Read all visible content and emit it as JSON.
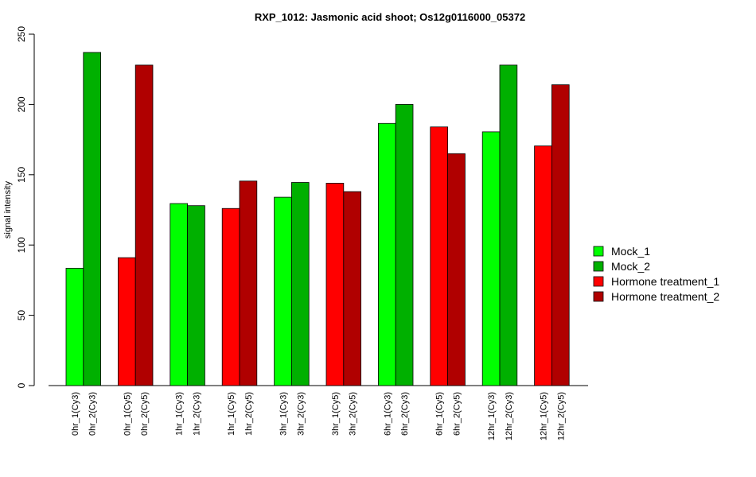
{
  "chart_data": {
    "type": "bar",
    "title": "RXP_1012: Jasmonic acid shoot; Os12g0116000_05372",
    "xlabel": "",
    "ylabel": "signal intensity",
    "ylim": [
      0,
      250
    ],
    "yticks": [
      0,
      50,
      100,
      150,
      200,
      250
    ],
    "grid": false,
    "legend_position": "right",
    "legend": [
      {
        "label": "Mock_1",
        "color": "#00ff00"
      },
      {
        "label": "Mock_2",
        "color": "#00b000"
      },
      {
        "label": "Hormone treatment_1",
        "color": "#ff0000"
      },
      {
        "label": "Hormone treatment_2",
        "color": "#b00000"
      }
    ],
    "bars": [
      {
        "label": "0hr_1(Cy3)",
        "value": 83.5,
        "series": 0
      },
      {
        "label": "0hr_2(Cy3)",
        "value": 237,
        "series": 1
      },
      {
        "label": "0hr_1(Cy5)",
        "value": 91,
        "series": 2
      },
      {
        "label": "0hr_2(Cy5)",
        "value": 228,
        "series": 3
      },
      {
        "label": "1hr_1(Cy3)",
        "value": 129.5,
        "series": 0
      },
      {
        "label": "1hr_2(Cy3)",
        "value": 128,
        "series": 1
      },
      {
        "label": "1hr_1(Cy5)",
        "value": 126,
        "series": 2
      },
      {
        "label": "1hr_2(Cy5)",
        "value": 145.5,
        "series": 3
      },
      {
        "label": "3hr_1(Cy3)",
        "value": 134,
        "series": 0
      },
      {
        "label": "3hr_2(Cy3)",
        "value": 144.5,
        "series": 1
      },
      {
        "label": "3hr_1(Cy5)",
        "value": 144,
        "series": 2
      },
      {
        "label": "3hr_2(Cy5)",
        "value": 138,
        "series": 3
      },
      {
        "label": "6hr_1(Cy3)",
        "value": 186.5,
        "series": 0
      },
      {
        "label": "6hr_2(Cy3)",
        "value": 200,
        "series": 1
      },
      {
        "label": "6hr_1(Cy5)",
        "value": 184,
        "series": 2
      },
      {
        "label": "6hr_2(Cy5)",
        "value": 165,
        "series": 3
      },
      {
        "label": "12hr_1(Cy3)",
        "value": 180.5,
        "series": 0
      },
      {
        "label": "12hr_2(Cy3)",
        "value": 228,
        "series": 1
      },
      {
        "label": "12hr_1(Cy5)",
        "value": 170.5,
        "series": 2
      },
      {
        "label": "12hr_2(Cy5)",
        "value": 214,
        "series": 3
      }
    ]
  }
}
